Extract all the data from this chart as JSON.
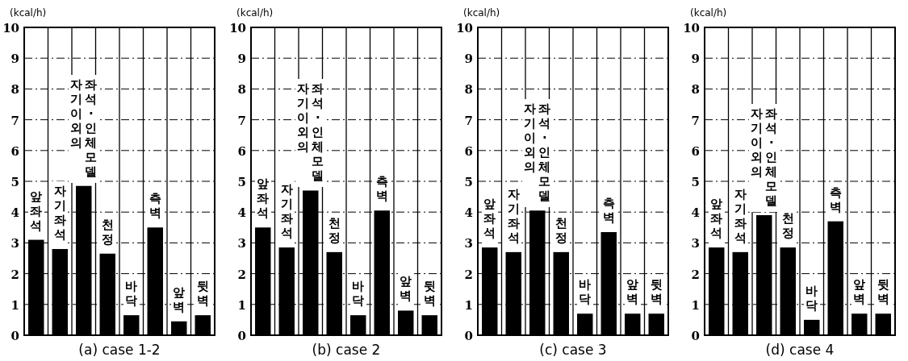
{
  "chart_data": [
    {
      "type": "bar",
      "title": "(a) case 1-2",
      "ylabel": "(kcal/h)",
      "categories": [
        "앞좌석",
        "자기좌석",
        "자기이외의 좌석·인체모델",
        "천정",
        "바닥",
        "측벽",
        "앞벽",
        "뒷벽"
      ],
      "values": [
        3.1,
        2.8,
        4.85,
        2.65,
        0.65,
        3.5,
        0.45,
        0.65
      ],
      "color": "#000000",
      "ylim": [
        0,
        10
      ],
      "yticks": [
        0,
        1,
        2,
        3,
        4,
        5,
        6,
        7,
        8,
        9,
        10
      ],
      "grid": "y"
    },
    {
      "type": "bar",
      "title": "(b) case 2",
      "ylabel": "(kcal/h)",
      "categories": [
        "앞좌석",
        "자기좌석",
        "자기이외의 좌석·인체모델",
        "천정",
        "바닥",
        "측벽",
        "앞벽",
        "뒷벽"
      ],
      "values": [
        3.5,
        2.85,
        4.7,
        2.7,
        0.65,
        4.05,
        0.8,
        0.65
      ],
      "color": "#000000",
      "ylim": [
        0,
        10
      ],
      "yticks": [
        0,
        1,
        2,
        3,
        4,
        5,
        6,
        7,
        8,
        9,
        10
      ],
      "grid": "y"
    },
    {
      "type": "bar",
      "title": "(c) case 3",
      "ylabel": "(kcal/h)",
      "categories": [
        "앞좌석",
        "자기좌석",
        "자기이외의 좌석·인체모델",
        "천정",
        "바닥",
        "측벽",
        "앞벽",
        "뒷벽"
      ],
      "values": [
        2.85,
        2.7,
        4.05,
        2.7,
        0.7,
        3.35,
        0.7,
        0.7
      ],
      "color": "#000000",
      "ylim": [
        0,
        10
      ],
      "yticks": [
        0,
        1,
        2,
        3,
        4,
        5,
        6,
        7,
        8,
        9,
        10
      ],
      "grid": "y"
    },
    {
      "type": "bar",
      "title": "(d) case 4",
      "ylabel": "(kcal/h)",
      "categories": [
        "앞좌석",
        "자기좌석",
        "자기이외의 좌석·인체모델",
        "천정",
        "바닥",
        "측벽",
        "앞벽",
        "뒷벽"
      ],
      "values": [
        2.85,
        2.7,
        3.9,
        2.85,
        0.5,
        3.7,
        0.7,
        0.7
      ],
      "color": "#000000",
      "ylim": [
        0,
        10
      ],
      "yticks": [
        0,
        1,
        2,
        3,
        4,
        5,
        6,
        7,
        8,
        9,
        10
      ],
      "grid": "y"
    }
  ]
}
